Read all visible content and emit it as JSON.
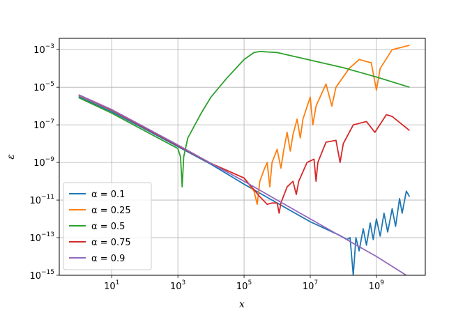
{
  "chart_data": {
    "type": "line",
    "xlabel": "x",
    "ylabel": "ε",
    "xscale": "log",
    "yscale": "log",
    "xlim": [
      0.26,
      30000000000
    ],
    "ylim": [
      1e-15,
      0.004
    ],
    "x_ticks": [
      {
        "base": "10",
        "exp": "1",
        "value": 10
      },
      {
        "base": "10",
        "exp": "3",
        "value": 1000
      },
      {
        "base": "10",
        "exp": "5",
        "value": 100000
      },
      {
        "base": "10",
        "exp": "7",
        "value": 10000000
      },
      {
        "base": "10",
        "exp": "9",
        "value": 1000000000
      }
    ],
    "y_ticks": [
      {
        "base": "10",
        "exp": "−15",
        "value": 1e-15
      },
      {
        "base": "10",
        "exp": "−13",
        "value": 1e-13
      },
      {
        "base": "10",
        "exp": "−11",
        "value": 1e-11
      },
      {
        "base": "10",
        "exp": "−9",
        "value": 1e-09
      },
      {
        "base": "10",
        "exp": "−7",
        "value": 1e-07
      },
      {
        "base": "10",
        "exp": "−5",
        "value": 1e-05
      },
      {
        "base": "10",
        "exp": "−3",
        "value": 0.001
      }
    ],
    "grid": true,
    "legend_position": "lower-left",
    "series": [
      {
        "name": "α = 0.1",
        "color": "#1f77b4",
        "points": [
          [
            1,
            3.2e-06
          ],
          [
            10,
            5e-07
          ],
          [
            100,
            6e-08
          ],
          [
            1000,
            7e-09
          ],
          [
            10000,
            8e-10
          ],
          [
            100000,
            7e-11
          ],
          [
            1000000,
            7e-12
          ],
          [
            10000000,
            7e-13
          ],
          [
            80000000,
            1.3e-13
          ],
          [
            130000000,
            8e-14
          ],
          [
            160000000,
            1e-13
          ],
          [
            200000000,
            1e-15
          ],
          [
            240000000,
            1e-13
          ],
          [
            300000000,
            2e-14
          ],
          [
            400000000,
            3e-13
          ],
          [
            500000000,
            4e-14
          ],
          [
            650000000,
            6e-13
          ],
          [
            800000000,
            8e-14
          ],
          [
            1000000000,
            1e-12
          ],
          [
            1300000000,
            1.2e-13
          ],
          [
            1700000000,
            2e-12
          ],
          [
            2200000000,
            2e-13
          ],
          [
            3000000000,
            3.5e-12
          ],
          [
            3800000000,
            4e-13
          ],
          [
            5000000000,
            1.2e-11
          ],
          [
            6000000000,
            2e-12
          ],
          [
            8000000000,
            3e-11
          ],
          [
            10000000000,
            1.5e-11
          ]
        ]
      },
      {
        "name": "α = 0.25",
        "color": "#ff7f0e",
        "points": [
          [
            1,
            3.8e-06
          ],
          [
            10,
            6e-07
          ],
          [
            100,
            7e-08
          ],
          [
            1000,
            8e-09
          ],
          [
            10000,
            9e-10
          ],
          [
            100000,
            1.5e-10
          ],
          [
            200000,
            3e-11
          ],
          [
            250000,
            6e-12
          ],
          [
            300000,
            1e-10
          ],
          [
            400000,
            4e-10
          ],
          [
            500000,
            1e-09
          ],
          [
            600000,
            5e-11
          ],
          [
            700000,
            1e-09
          ],
          [
            1000000,
            5e-09
          ],
          [
            1300000,
            5e-10
          ],
          [
            1600000,
            5e-09
          ],
          [
            2000000,
            4e-08
          ],
          [
            2500000,
            4e-09
          ],
          [
            3000000,
            3e-08
          ],
          [
            4000000,
            2e-07
          ],
          [
            5000000,
            2e-08
          ],
          [
            6000000,
            2e-07
          ],
          [
            10000000,
            3e-06
          ],
          [
            12000000,
            1e-07
          ],
          [
            15000000,
            1e-06
          ],
          [
            30000000,
            1.5e-05
          ],
          [
            45000000,
            1e-06
          ],
          [
            60000000,
            1e-05
          ],
          [
            150000000,
            0.0001
          ],
          [
            300000000,
            0.0003
          ],
          [
            700000000,
            0.0002
          ],
          [
            1000000000,
            7e-06
          ],
          [
            1300000000,
            0.0001
          ],
          [
            3000000000,
            0.001
          ],
          [
            10000000000,
            0.0017
          ]
        ]
      },
      {
        "name": "α = 0.5",
        "color": "#2ca02c",
        "points": [
          [
            1,
            2.8e-06
          ],
          [
            10,
            4.2e-07
          ],
          [
            100,
            4.8e-08
          ],
          [
            1000,
            5.5e-09
          ],
          [
            1200,
            2e-09
          ],
          [
            1350,
            5e-11
          ],
          [
            1500,
            2e-09
          ],
          [
            2000,
            2e-08
          ],
          [
            5000,
            4e-07
          ],
          [
            10000,
            3e-06
          ],
          [
            30000,
            3e-05
          ],
          [
            100000,
            0.0003
          ],
          [
            200000,
            0.0007
          ],
          [
            300000,
            0.0008
          ],
          [
            1000000,
            0.0007
          ],
          [
            10000000,
            0.00028
          ],
          [
            100000000,
            0.00011
          ],
          [
            1000000000,
            3.5e-05
          ],
          [
            10000000000,
            1e-05
          ]
        ]
      },
      {
        "name": "α = 0.75",
        "color": "#d62728",
        "points": [
          [
            1,
            3.9e-06
          ],
          [
            10,
            6.1e-07
          ],
          [
            100,
            7e-08
          ],
          [
            1000,
            8e-09
          ],
          [
            10000,
            9e-10
          ],
          [
            100000,
            1.5e-10
          ],
          [
            300000,
            1.5e-11
          ],
          [
            500000,
            6e-12
          ],
          [
            700000,
            7e-12
          ],
          [
            1000000,
            7e-12
          ],
          [
            1150000,
            2e-12
          ],
          [
            1300000,
            7e-12
          ],
          [
            2000000,
            5e-11
          ],
          [
            3000000,
            1e-10
          ],
          [
            3800000,
            2e-11
          ],
          [
            4500000,
            1e-10
          ],
          [
            8000000,
            1e-09
          ],
          [
            13000000,
            1.5e-09
          ],
          [
            15000000,
            1e-10
          ],
          [
            17000000,
            1e-09
          ],
          [
            30000000,
            1.2e-08
          ],
          [
            60000000,
            1.5e-08
          ],
          [
            80000000,
            1e-09
          ],
          [
            100000000,
            1e-08
          ],
          [
            200000000,
            1e-07
          ],
          [
            500000000,
            1.5e-07
          ],
          [
            900000000,
            4e-08
          ],
          [
            2000000000,
            3.5e-07
          ],
          [
            3000000000,
            2.8e-07
          ],
          [
            10000000000,
            5e-08
          ]
        ]
      },
      {
        "name": "α = 0.9",
        "color": "#9467bd",
        "points": [
          [
            1,
            4e-06
          ],
          [
            10,
            6.5e-07
          ],
          [
            100,
            7.5e-08
          ],
          [
            1000,
            8.5e-09
          ],
          [
            10000,
            9e-10
          ],
          [
            100000,
            1e-10
          ],
          [
            1000000,
            1e-11
          ],
          [
            10000000,
            1e-12
          ],
          [
            100000000,
            1e-13
          ],
          [
            1000000000,
            1e-14
          ],
          [
            8000000000,
            1e-15
          ]
        ]
      }
    ]
  }
}
